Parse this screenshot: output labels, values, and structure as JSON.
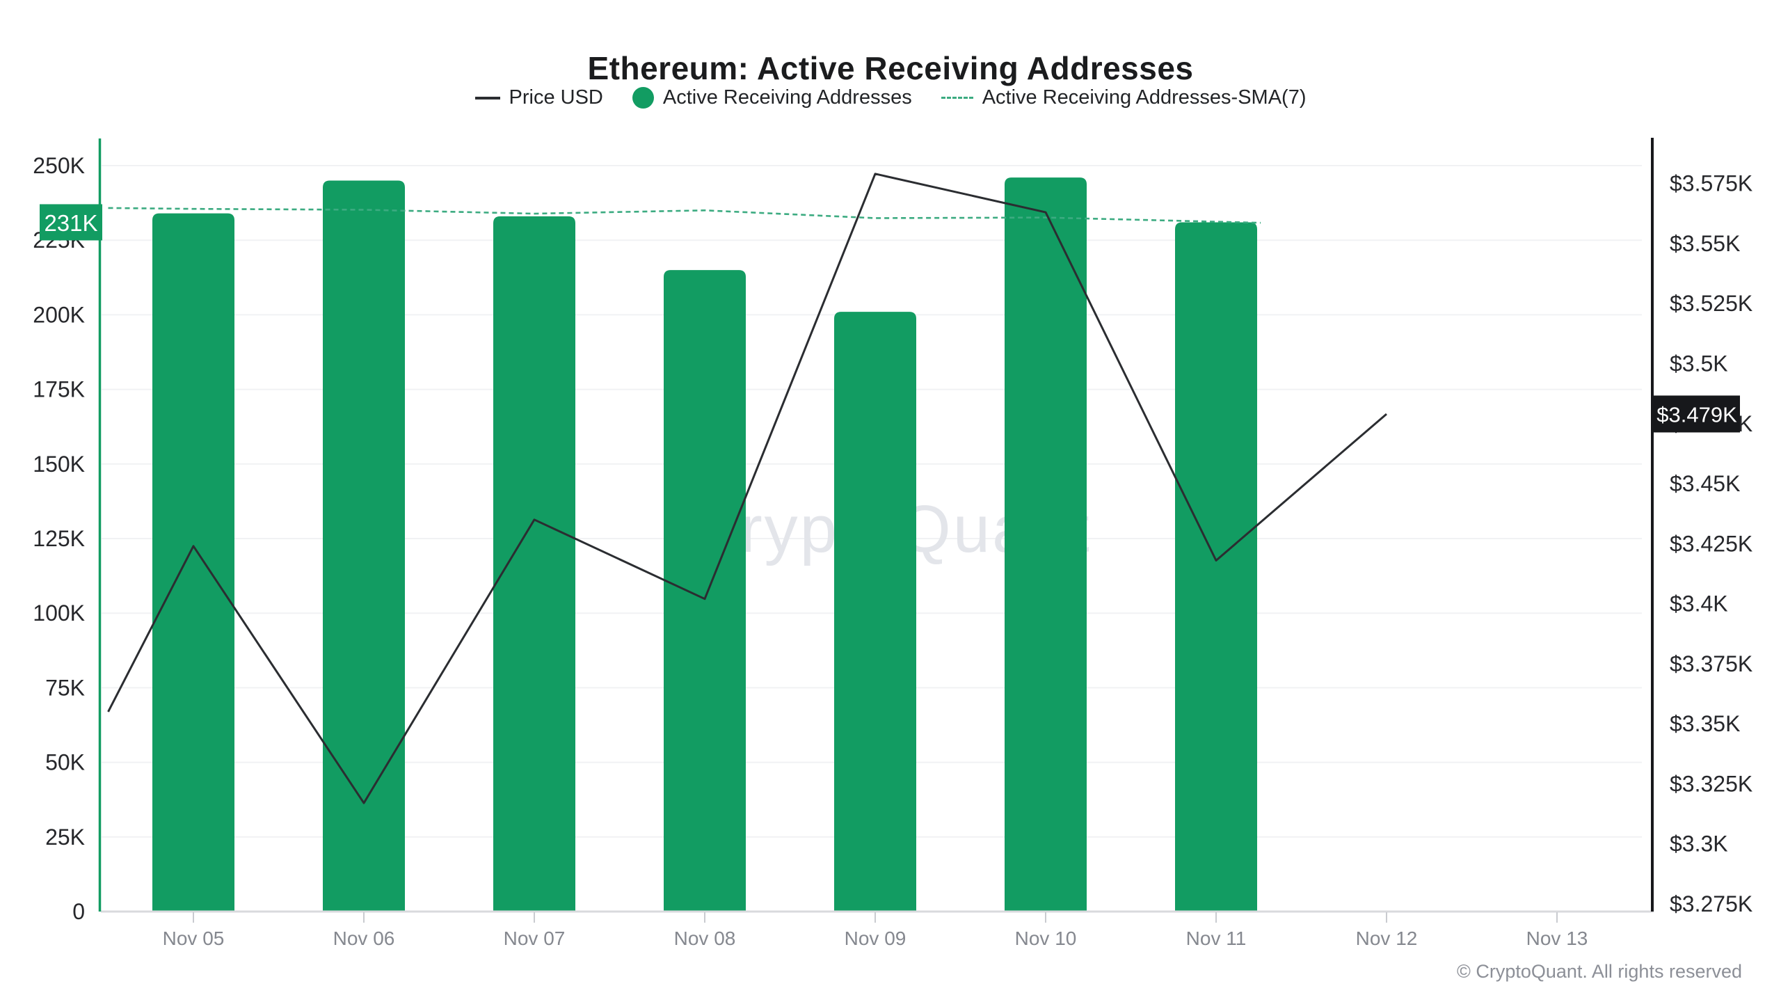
{
  "chart_data": {
    "type": "combo",
    "title": "Ethereum: Active Receiving Addresses",
    "categories": [
      "Nov 05",
      "Nov 06",
      "Nov 07",
      "Nov 08",
      "Nov 09",
      "Nov 10",
      "Nov 11",
      "Nov 12",
      "Nov 13"
    ],
    "series": [
      {
        "name": "Price USD",
        "type": "line",
        "axis": "right",
        "unit": "USD",
        "edge_value": 3355,
        "values": [
          3424,
          3317,
          3435,
          3402,
          3579,
          3563,
          3418,
          3479,
          null
        ]
      },
      {
        "name": "Active Receiving Addresses",
        "type": "bar",
        "axis": "left",
        "values": [
          234000,
          245000,
          233000,
          215000,
          201000,
          246000,
          231000,
          null,
          null
        ]
      },
      {
        "name": "Active Receiving Addresses-SMA(7)",
        "type": "line",
        "dashed": true,
        "axis": "left",
        "edge_value": 235800,
        "values": [
          235500,
          235200,
          233900,
          235000,
          232400,
          232600,
          231200,
          null,
          null
        ]
      }
    ],
    "left_axis": {
      "ylim": [
        0,
        250000
      ],
      "ticks": [
        {
          "label": "250K",
          "value": 250000
        },
        {
          "label": "225K",
          "value": 225000
        },
        {
          "label": "200K",
          "value": 200000
        },
        {
          "label": "175K",
          "value": 175000
        },
        {
          "label": "150K",
          "value": 150000
        },
        {
          "label": "125K",
          "value": 125000
        },
        {
          "label": "100K",
          "value": 100000
        },
        {
          "label": "75K",
          "value": 75000
        },
        {
          "label": "50K",
          "value": 50000
        },
        {
          "label": "25K",
          "value": 25000
        },
        {
          "label": "0",
          "value": 0
        }
      ],
      "badge": {
        "label": "231K",
        "value": 231000,
        "bg": "#129c62",
        "fg": "#ffffff"
      }
    },
    "right_axis": {
      "ylim": [
        3275,
        3575
      ],
      "ticks": [
        {
          "label": "$3.575K",
          "value": 3575
        },
        {
          "label": "$3.55K",
          "value": 3550
        },
        {
          "label": "$3.525K",
          "value": 3525
        },
        {
          "label": "$3.5K",
          "value": 3500
        },
        {
          "label": "$3.475K",
          "value": 3475
        },
        {
          "label": "$3.45K",
          "value": 3450
        },
        {
          "label": "$3.425K",
          "value": 3425
        },
        {
          "label": "$3.4K",
          "value": 3400
        },
        {
          "label": "$3.375K",
          "value": 3375
        },
        {
          "label": "$3.35K",
          "value": 3350
        },
        {
          "label": "$3.325K",
          "value": 3325
        },
        {
          "label": "$3.3K",
          "value": 3300
        },
        {
          "label": "$3.275K",
          "value": 3275
        }
      ],
      "badge": {
        "label": "$3.479K",
        "value": 3479,
        "bg": "#17181b",
        "fg": "#ffffff"
      }
    },
    "legend_position": "top-center",
    "grid": "horizontal-only",
    "watermark": "CryptoQuant",
    "footer": "© CryptoQuant. All rights reserved",
    "colors": {
      "bar": "#129c62",
      "sma": "#3cab81",
      "price": "#2b2d31",
      "grid": "#f1f2f4",
      "axis_text": "#26272b",
      "x_text": "#85888f",
      "footer_text": "#8c8f97",
      "watermark": "#e3e5ea",
      "left_spine": "#129c62",
      "right_spine": "#17181b",
      "bottom_axis": "#d9dadd",
      "tick": "#c9cbd0"
    }
  }
}
